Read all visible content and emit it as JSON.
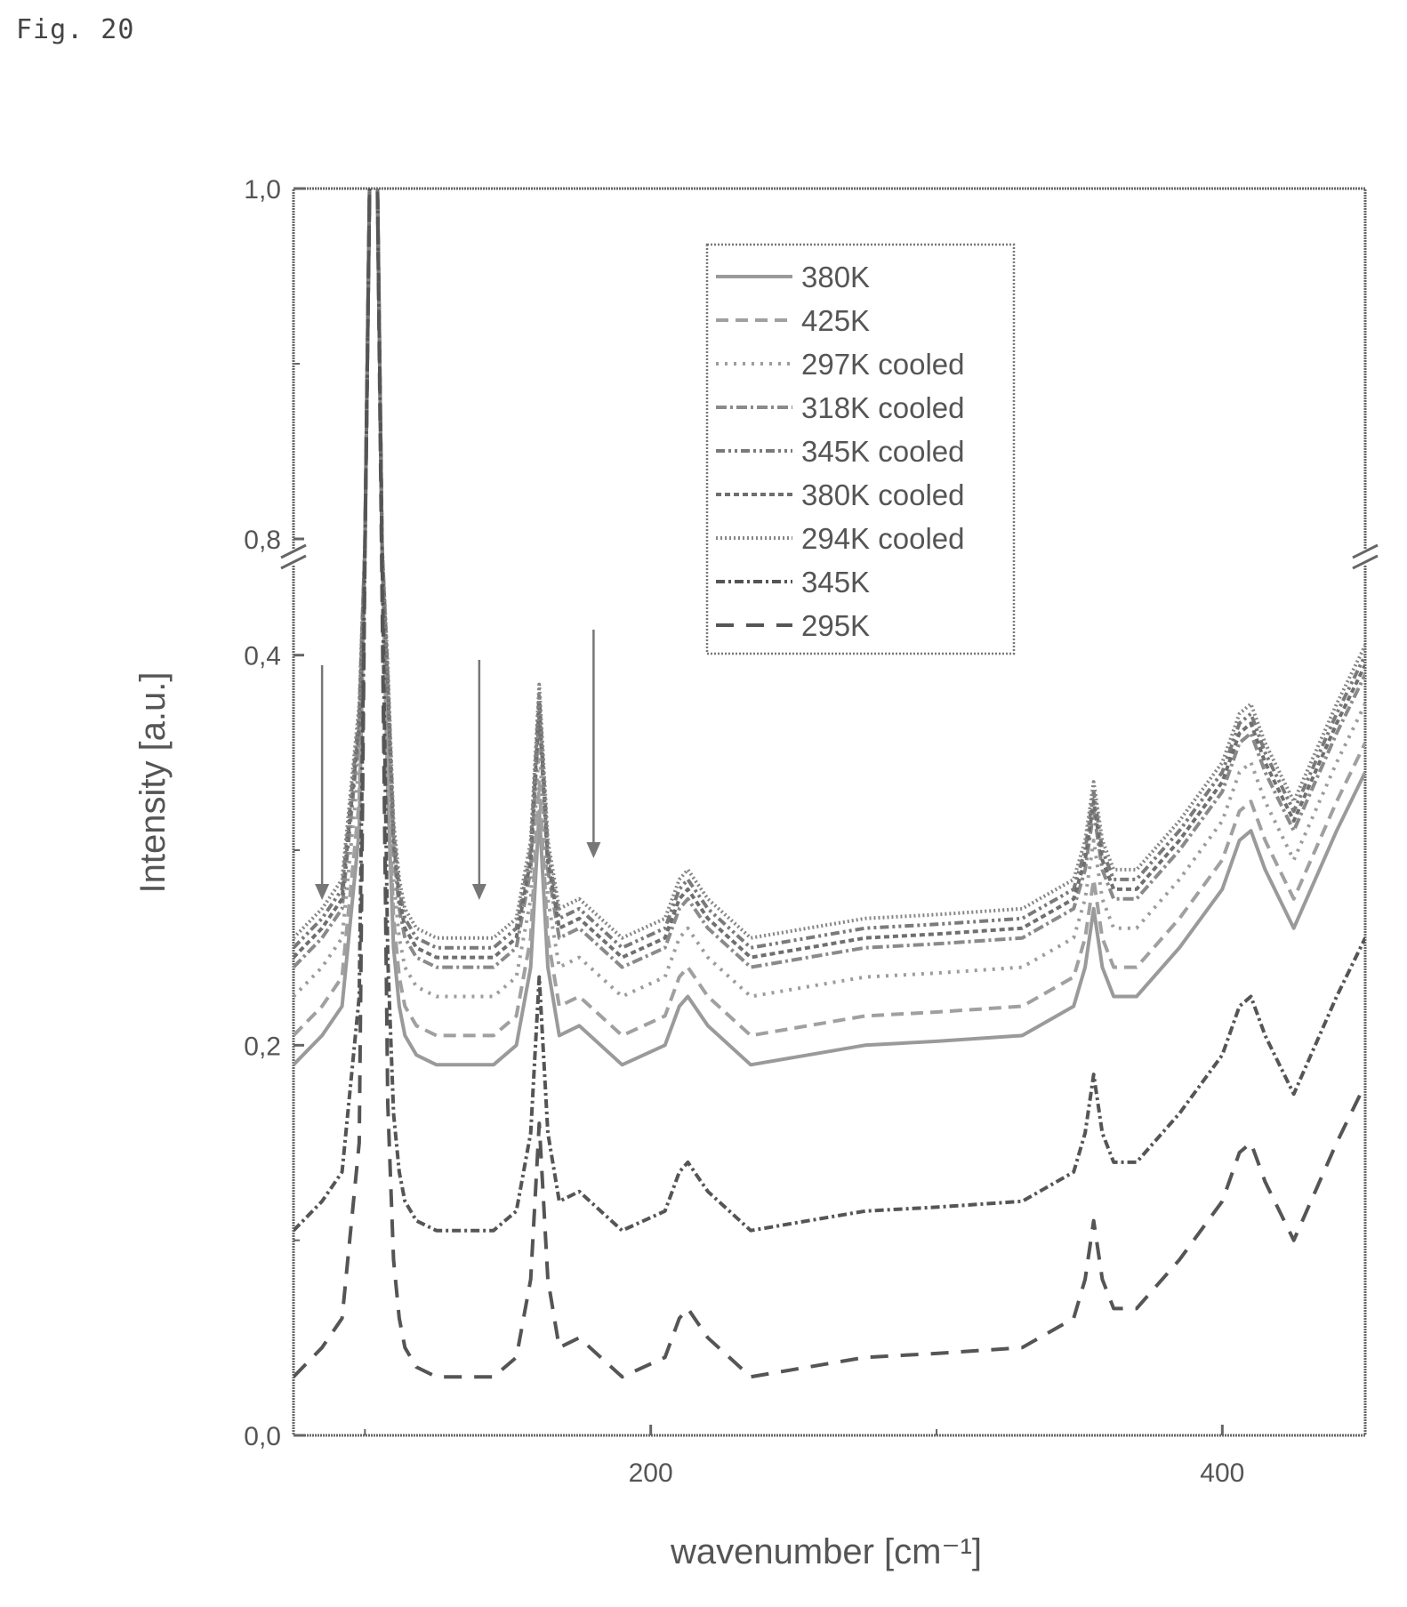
{
  "figure": {
    "label": "Fig. 20"
  },
  "chart_data": {
    "type": "line",
    "title": "",
    "xlabel": "wavenumber [cm⁻¹]",
    "ylabel": "Intensity [a.u.]",
    "xlim": [
      75,
      450
    ],
    "y_scale": "broken",
    "y_lower_range": [
      0.0,
      0.45
    ],
    "y_upper_range": [
      0.8,
      1.0
    ],
    "x_ticks": [
      "200",
      "400"
    ],
    "y_ticks": [
      "0,0",
      "0,2",
      "0,4",
      "0,8",
      "1,0"
    ],
    "legend_position": "top-center",
    "grid": false,
    "arrows_at_x": [
      85,
      140,
      180
    ],
    "series": [
      {
        "name": "380K",
        "color": "#9a9a9a",
        "dash": "",
        "offset": 0.19
      },
      {
        "name": "425K",
        "color": "#a0a0a0",
        "dash": "14 8",
        "offset": 0.205
      },
      {
        "name": "297K cooled",
        "color": "#9c9c9c",
        "dash": "3 7",
        "offset": 0.225
      },
      {
        "name": "318K cooled",
        "color": "#8a8a8a",
        "dash": "12 4 3 4",
        "offset": 0.24
      },
      {
        "name": "345K cooled",
        "color": "#7a7a7a",
        "dash": "10 4 3 4 3 4",
        "offset": 0.25
      },
      {
        "name": "380K cooled",
        "color": "#6f6f6f",
        "dash": "6 4",
        "offset": 0.245
      },
      {
        "name": "294K cooled",
        "color": "#868686",
        "dash": "2 3",
        "offset": 0.255
      },
      {
        "name": "345K",
        "color": "#555555",
        "dash": "10 4 3 4",
        "offset": 0.105
      },
      {
        "name": "295K",
        "color": "#555555",
        "dash": "20 14",
        "offset": 0.03
      }
    ],
    "x": [
      75,
      85,
      92,
      98,
      100,
      102,
      104,
      106,
      108,
      110,
      112,
      114,
      118,
      125,
      135,
      145,
      153,
      158,
      161,
      164,
      168,
      175,
      190,
      205,
      210,
      213,
      220,
      235,
      255,
      275,
      300,
      330,
      348,
      352,
      355,
      358,
      362,
      370,
      385,
      400,
      406,
      410,
      415,
      425,
      440,
      450
    ],
    "base_profile": [
      0,
      0.015,
      0.03,
      0.12,
      0.42,
      0.85,
      0.85,
      0.4,
      0.14,
      0.06,
      0.03,
      0.015,
      0.005,
      0,
      0,
      0,
      0.01,
      0.05,
      0.13,
      0.05,
      0.015,
      0.02,
      0,
      0.01,
      0.03,
      0.035,
      0.02,
      0,
      0.005,
      0.01,
      0.012,
      0.015,
      0.03,
      0.05,
      0.08,
      0.05,
      0.035,
      0.035,
      0.06,
      0.09,
      0.115,
      0.12,
      0.1,
      0.07,
      0.12,
      0.15
    ]
  }
}
